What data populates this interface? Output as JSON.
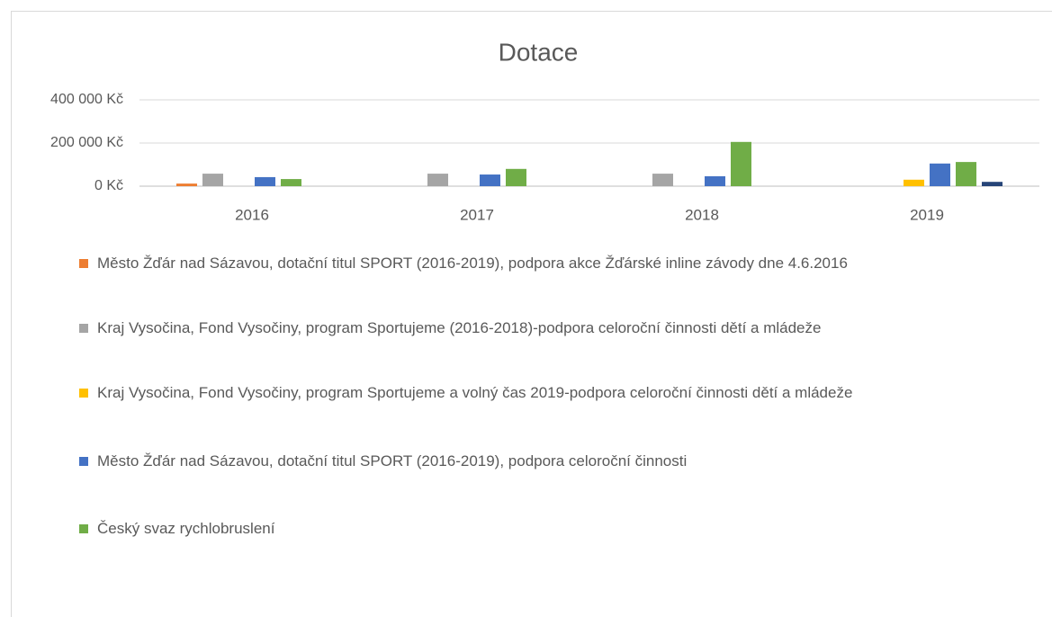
{
  "chart_data": {
    "type": "bar",
    "title": "Dotace",
    "categories": [
      "2016",
      "2017",
      "2018",
      "2019"
    ],
    "series": [
      {
        "name": "Město Žďár nad Sázavou, dotační titul SPORT (2016-2019), podpora akce Žďárské inline závody dne 4.6.2016",
        "color": "#ed7d31",
        "values": [
          12000,
          null,
          null,
          null
        ]
      },
      {
        "name": "Kraj Vysočina, Fond Vysočiny, program Sportujeme (2016-2018)-podpora celoroční činnosti dětí a mládeže",
        "color": "#a5a5a5",
        "values": [
          58000,
          58000,
          58000,
          null
        ]
      },
      {
        "name": "Kraj Vysočina, Fond Vysočiny, program Sportujeme a volný čas 2019-podpora celoroční činnosti dětí a mládeže",
        "color": "#ffc000",
        "values": [
          null,
          null,
          null,
          30000
        ]
      },
      {
        "name": "Město Žďár nad Sázavou, dotační titul SPORT (2016-2019), podpora celoroční činnosti",
        "color": "#4472c4",
        "values": [
          42000,
          54000,
          46000,
          105000
        ]
      },
      {
        "name": "Český svaz rychlobruslení",
        "color": "#70ad47",
        "values": [
          33000,
          80000,
          205000,
          112000
        ]
      },
      {
        "color": "#264478",
        "values": [
          null,
          null,
          null,
          20000
        ]
      }
    ],
    "ylim": [
      0,
      400000
    ],
    "yticks": [
      {
        "value": 0,
        "label": "0 Kč"
      },
      {
        "value": 200000,
        "label": "200 000 Kč"
      },
      {
        "value": 400000,
        "label": "400 000 Kč"
      }
    ],
    "grid": true
  }
}
